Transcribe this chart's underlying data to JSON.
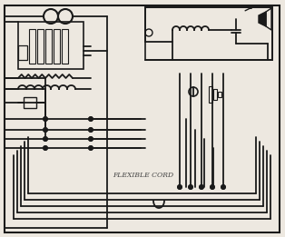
{
  "bg_color": "#ede8e0",
  "lc": "#1a1a1a",
  "lw": 1.3,
  "fig_w": 3.14,
  "fig_h": 2.61,
  "dpi": 100,
  "label_flexible": "FLEXIBLE CORD",
  "label_fontsize": 5.5
}
